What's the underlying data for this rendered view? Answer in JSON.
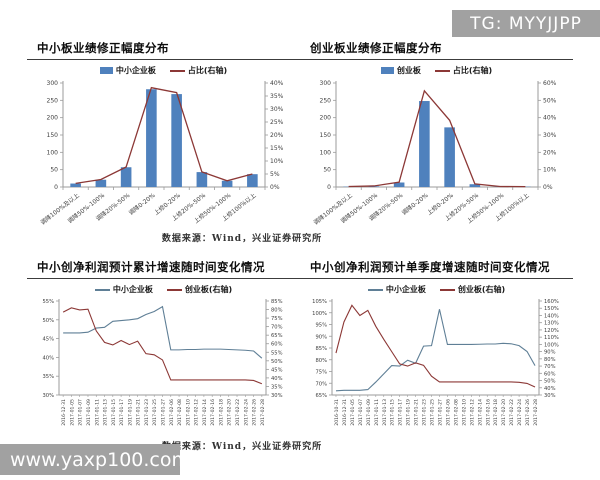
{
  "watermarks": {
    "top": "TG: MYYJJPP",
    "bottom": "www.yaxp100.com"
  },
  "source_note": "数据来源：Wind，兴业证券研究所",
  "colors": {
    "bar_blue": "#4f81bd",
    "line_maroon": "#8c3836",
    "line_slate": "#5f7f96",
    "axis_gray": "#9b9b9b",
    "watermark_gray": "#a1a1a1"
  },
  "chart_data": [
    {
      "id": "sme-board-revision-distribution",
      "type": "bar+line",
      "title": "中小板业绩修正幅度分布",
      "legend": [
        {
          "label": "中小企业板",
          "swatch": "bar",
          "color": "#4f81bd"
        },
        {
          "label": "占比(右轴)",
          "swatch": "line",
          "color": "#8c3836"
        }
      ],
      "categories": [
        "调降100%及以上",
        "调降50%-100%",
        "调降20%-50%",
        "调降0-20%",
        "上修0-20%",
        "上修20%-50%",
        "上修50%-100%",
        "上修100%以上"
      ],
      "bars": [
        10,
        21,
        57,
        282,
        268,
        43,
        18,
        37
      ],
      "bar_color": "#4f81bd",
      "line": [
        1.4,
        2.9,
        7.7,
        38.2,
        36.3,
        5.8,
        2.4,
        5.0
      ],
      "line_color": "#8c3836",
      "left_axis": {
        "min": 0,
        "max": 300,
        "step": 50,
        "format": "num"
      },
      "right_axis": {
        "min": 0,
        "max": 40,
        "step": 5,
        "format": "pct"
      }
    },
    {
      "id": "gem-board-revision-distribution",
      "type": "bar+line",
      "title": "创业板业绩修正幅度分布",
      "legend": [
        {
          "label": "创业板",
          "swatch": "bar",
          "color": "#4f81bd"
        },
        {
          "label": "占比(右轴)",
          "swatch": "line",
          "color": "#8c3836"
        }
      ],
      "categories": [
        "调降100%及以上",
        "调降50%-100%",
        "调降20%-50%",
        "调降0-20%",
        "上修0-20%",
        "上修20%-50%",
        "上修50%-100%",
        "上修100%以上"
      ],
      "bars": [
        1,
        2,
        13,
        248,
        172,
        8,
        1,
        1
      ],
      "bar_color": "#4f81bd",
      "line": [
        0.3,
        0.6,
        2.8,
        55.5,
        38.5,
        1.8,
        0.3,
        0.2
      ],
      "line_color": "#8c3836",
      "left_axis": {
        "min": 0,
        "max": 300,
        "step": 50,
        "format": "num"
      },
      "right_axis": {
        "min": 0,
        "max": 60,
        "step": 10,
        "format": "pct"
      }
    },
    {
      "id": "cumulative-profit-growth-over-time",
      "type": "line",
      "title": "中小创净利润预计累计增速随时间变化情况",
      "legend": [
        {
          "label": "中小企业板",
          "swatch": "line",
          "color": "#5f7f96"
        },
        {
          "label": "创业板(右轴)",
          "swatch": "line",
          "color": "#8c3836"
        }
      ],
      "x": [
        "2016-12-31",
        "2017-01-05",
        "2017-01-07",
        "2017-01-09",
        "2017-01-11",
        "2017-01-13",
        "2017-01-15",
        "2017-01-17",
        "2017-01-19",
        "2017-01-21",
        "2017-01-23",
        "2017-01-25",
        "2017-01-27",
        "2017-02-06",
        "2017-02-08",
        "2017-02-10",
        "2017-02-12",
        "2017-02-14",
        "2017-02-16",
        "2017-02-18",
        "2017-02-20",
        "2017-02-22",
        "2017-02-24",
        "2017-02-26",
        "2017-02-28"
      ],
      "series": [
        {
          "name": "中小企业板",
          "axis": "left",
          "color": "#5f7f96",
          "values": [
            46.5,
            46.5,
            46.5,
            46.7,
            47.8,
            48.0,
            49.6,
            49.8,
            50.0,
            50.3,
            51.4,
            52.2,
            53.5,
            42.0,
            42.0,
            42.1,
            42.1,
            42.2,
            42.2,
            42.2,
            42.1,
            42.0,
            41.9,
            41.7,
            39.8
          ]
        },
        {
          "name": "创业板(右轴)",
          "axis": "right",
          "color": "#8c3836",
          "values": [
            78.5,
            81.0,
            79.8,
            80.2,
            67.5,
            60.8,
            59.3,
            61.9,
            59.5,
            61.5,
            54.2,
            53.5,
            50.5,
            38.8,
            38.8,
            38.8,
            38.8,
            38.8,
            38.8,
            38.8,
            38.8,
            38.8,
            38.8,
            38.5,
            36.6
          ]
        }
      ],
      "left_axis": {
        "min": 30,
        "max": 55,
        "step": 5,
        "format": "pct"
      },
      "right_axis": {
        "min": 30,
        "max": 85,
        "step": 5,
        "format": "pct"
      }
    },
    {
      "id": "quarterly-profit-growth-over-time",
      "type": "line",
      "title": "中小创净利润预计单季度增速随时间变化情况",
      "legend": [
        {
          "label": "中小企业板",
          "swatch": "line",
          "color": "#5f7f96"
        },
        {
          "label": "创业板(右轴)",
          "swatch": "line",
          "color": "#8c3836"
        }
      ],
      "x": [
        "2016-10-31",
        "2016-12-31",
        "2017-01-05",
        "2017-01-07",
        "2017-01-09",
        "2017-01-11",
        "2017-01-13",
        "2017-01-15",
        "2017-01-17",
        "2017-01-19",
        "2017-01-21",
        "2017-01-23",
        "2017-01-25",
        "2017-01-27",
        "2017-02-06",
        "2017-02-08",
        "2017-02-10",
        "2017-02-12",
        "2017-02-14",
        "2017-02-16",
        "2017-02-18",
        "2017-02-20",
        "2017-02-22",
        "2017-02-24",
        "2017-02-26",
        "2017-02-28"
      ],
      "series": [
        {
          "name": "中小企业板",
          "axis": "left",
          "color": "#5f7f96",
          "values": [
            66.8,
            67.0,
            67.0,
            67.0,
            67.3,
            70.5,
            74.0,
            77.5,
            77.3,
            79.8,
            78.5,
            85.8,
            86.0,
            101.5,
            86.5,
            86.5,
            86.5,
            86.5,
            86.6,
            86.7,
            86.7,
            87.0,
            86.8,
            86.0,
            83.5,
            77.5
          ]
        },
        {
          "name": "创业板(右轴)",
          "axis": "right",
          "color": "#8c3836",
          "values": [
            88,
            131,
            154,
            140,
            147,
            125,
            107,
            90,
            73,
            70,
            74.5,
            71,
            56,
            48,
            48,
            48,
            48,
            48,
            48,
            48,
            48,
            48,
            48,
            47.5,
            46,
            41
          ]
        }
      ],
      "left_axis": {
        "min": 65,
        "max": 105,
        "step": 5,
        "format": "pct"
      },
      "right_axis": {
        "min": 30,
        "max": 160,
        "step": 10,
        "format": "pct"
      }
    }
  ]
}
